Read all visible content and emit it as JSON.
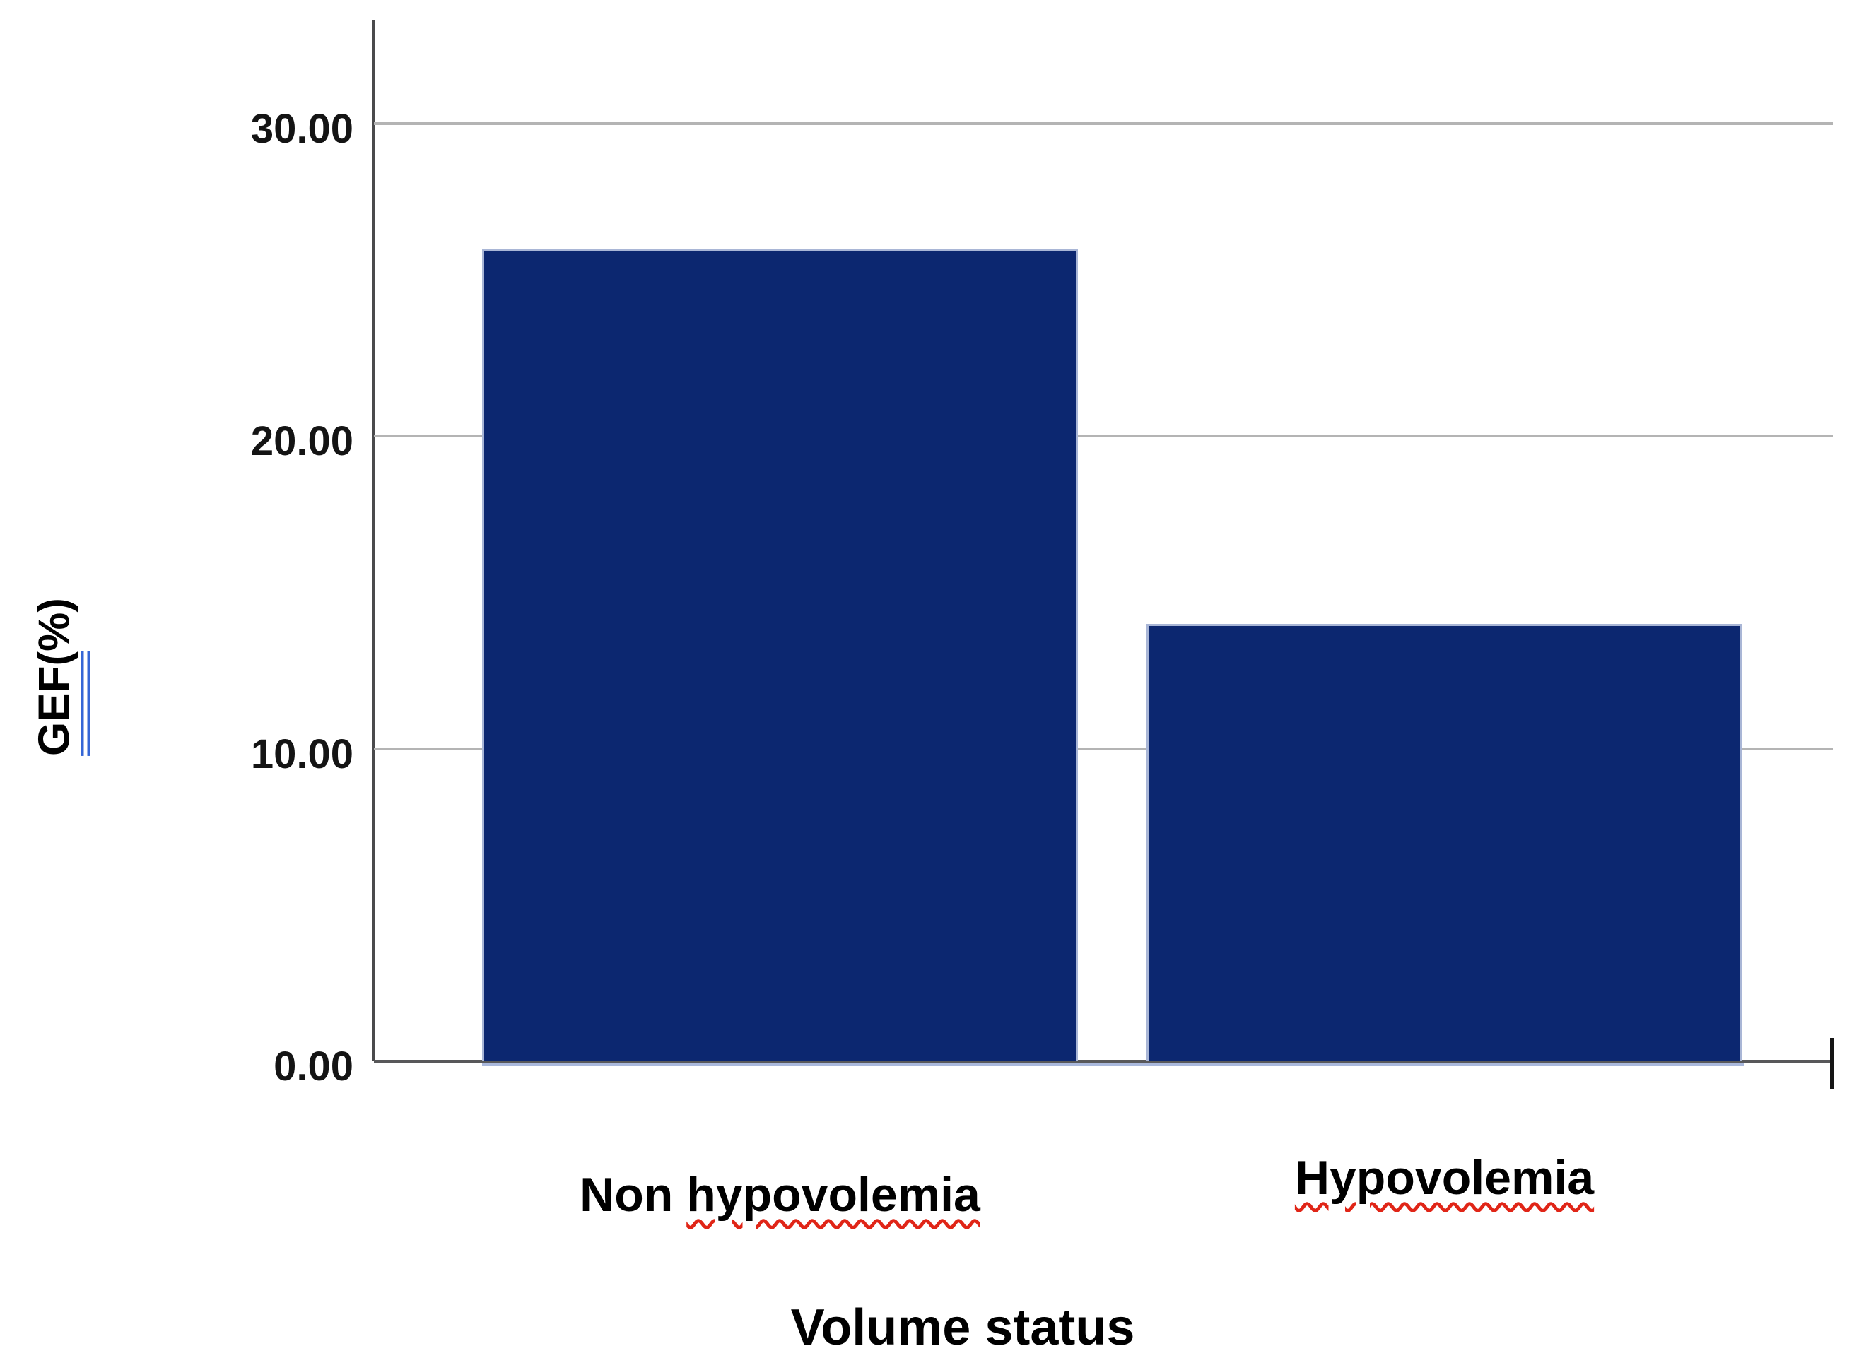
{
  "chart_data": {
    "type": "bar",
    "title": "",
    "categories": [
      "Non hypovolemia",
      "Hypovolemia"
    ],
    "values": [
      26,
      14
    ],
    "xlabel": "Volume status",
    "ylabel": "GEF(%)",
    "ylabel_parts": {
      "grammar_underlined": "GEF(",
      "rest": "%)"
    },
    "categories_rich": [
      {
        "prefix": "Non ",
        "spellcheck_wavy": "hypovolemia"
      },
      {
        "prefix": "",
        "spellcheck_wavy": "Hypovolemia"
      }
    ],
    "yticks": [
      {
        "value": 0,
        "label": "0.00"
      },
      {
        "value": 10,
        "label": "10.00"
      },
      {
        "value": 20,
        "label": "20.00"
      },
      {
        "value": 30,
        "label": "30.00"
      }
    ],
    "ylim": [
      0,
      33.3
    ],
    "grid": "horizontal",
    "legend": "none",
    "colors": {
      "bar_fill": "#0c2770",
      "bar_edge_light": "#a9b6d6",
      "gridline": "#b4b4b4",
      "axis_line": "#4a4a4c",
      "baseline": "#58585a",
      "spellcheck_red": "#e02517",
      "grammar_blue": "#3566d6",
      "text": "#000000"
    }
  }
}
